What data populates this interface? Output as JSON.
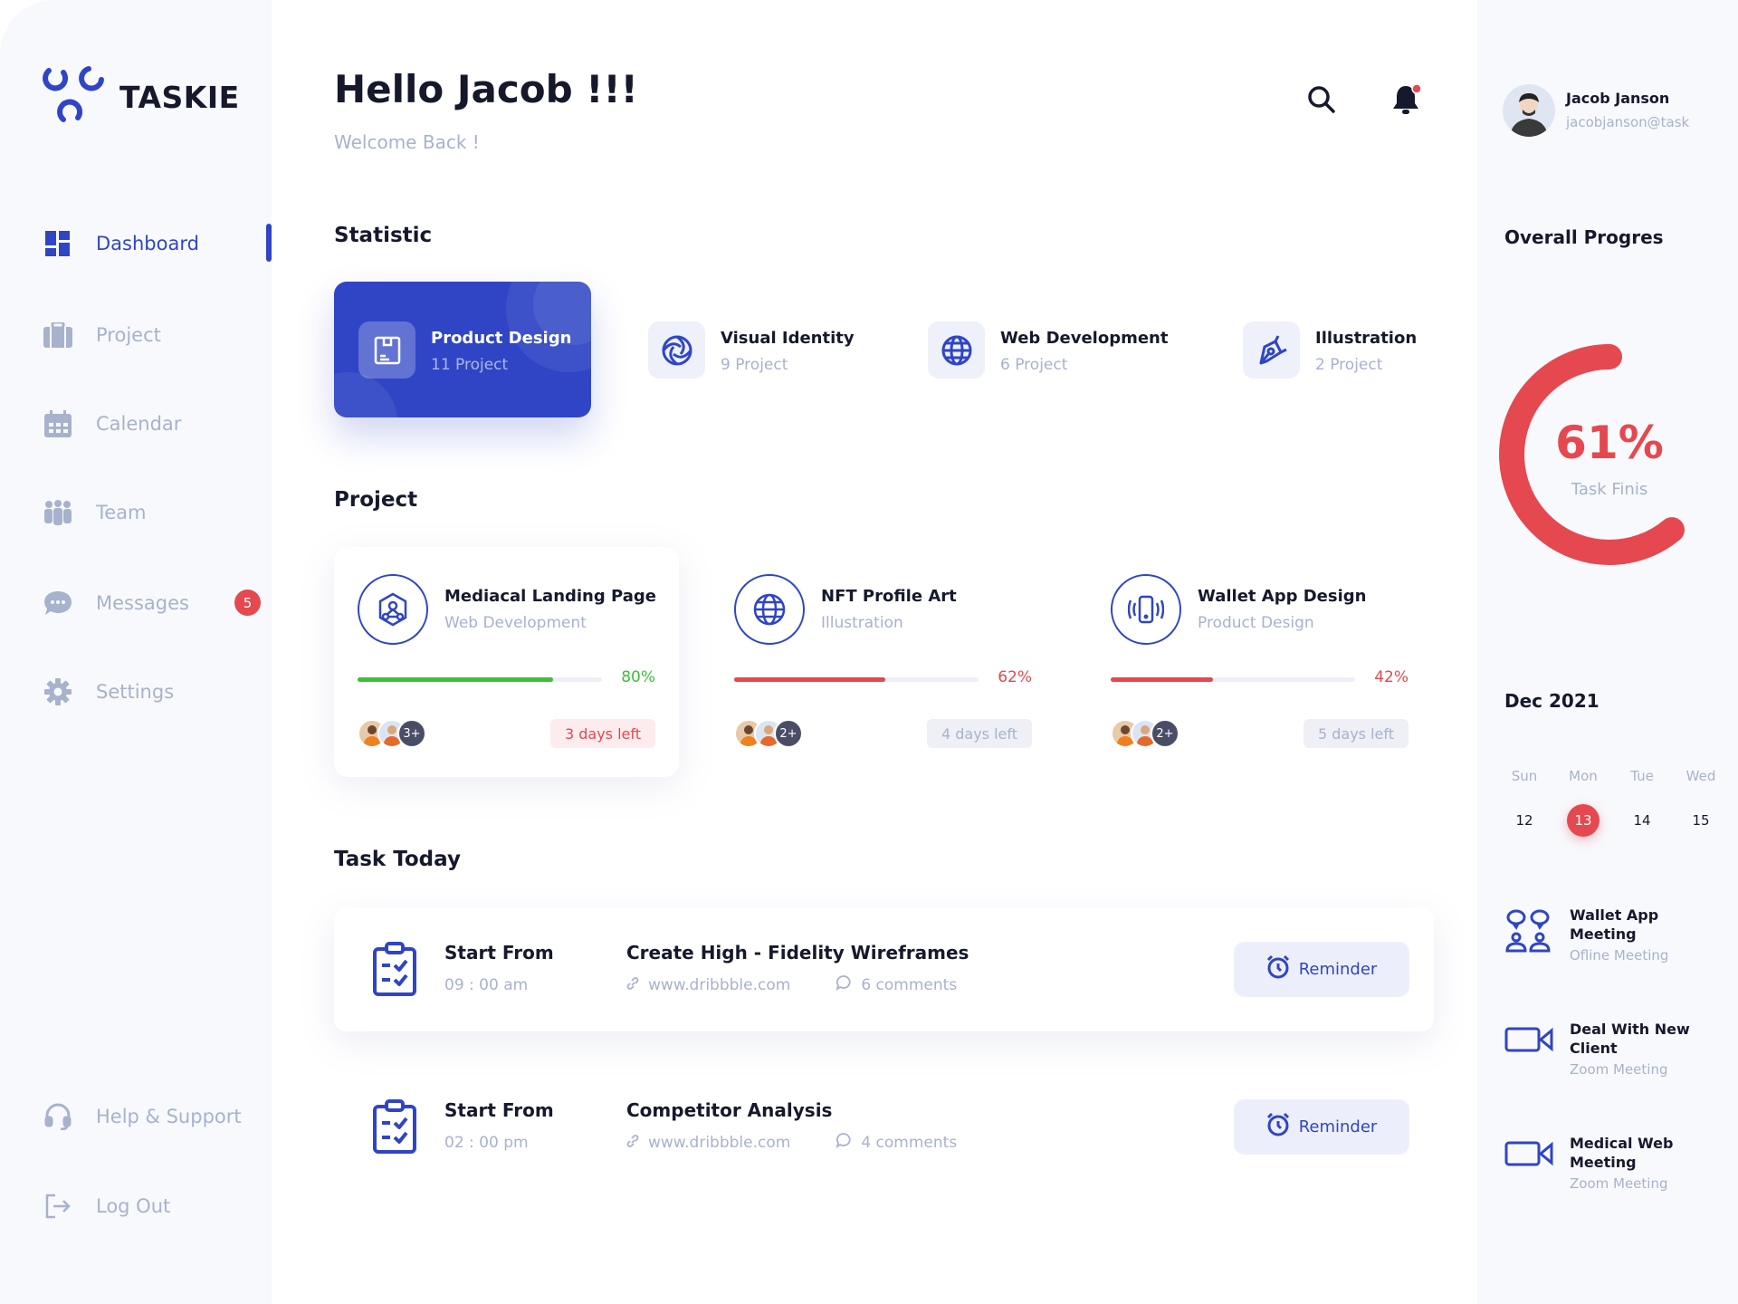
{
  "brand": {
    "name": "TASKIE",
    "color": "#2f45c5"
  },
  "sidebar": {
    "items": [
      {
        "label": "Dashboard",
        "icon": "dashboard-grid-icon",
        "active": true
      },
      {
        "label": "Project",
        "icon": "briefcase-icon"
      },
      {
        "label": "Calendar",
        "icon": "calendar-icon"
      },
      {
        "label": "Team",
        "icon": "team-icon"
      },
      {
        "label": "Messages",
        "icon": "chat-bubble-icon",
        "badge": "5"
      },
      {
        "label": "Settings",
        "icon": "gear-icon"
      }
    ],
    "bottom": [
      {
        "label": "Help & Support",
        "icon": "headset-icon"
      },
      {
        "label": "Log Out",
        "icon": "logout-icon"
      }
    ]
  },
  "header": {
    "greeting": "Hello Jacob !!!",
    "subtitle": "Welcome Back !"
  },
  "user": {
    "name": "Jacob Janson",
    "email": "jacobjanson@task"
  },
  "statistic": {
    "title": "Statistic",
    "items": [
      {
        "title": "Product Design",
        "count": "11 Project",
        "icon": "box-icon",
        "active": true
      },
      {
        "title": "Visual Identity",
        "count": "9 Project",
        "icon": "aperture-icon"
      },
      {
        "title": "Web Development",
        "count": "6 Project",
        "icon": "globe-icon"
      },
      {
        "title": "Illustration",
        "count": "2 Project",
        "icon": "pen-tool-icon"
      }
    ]
  },
  "projects": {
    "title": "Project",
    "items": [
      {
        "title": "Mediacal Landing Page",
        "category": "Web Development",
        "progress": 80,
        "progress_label": "80%",
        "color": "#3dbf3a",
        "members_more": "3+",
        "due": "3 days left",
        "due_urgent": true,
        "icon": "network-icon"
      },
      {
        "title": "NFT Profile Art",
        "category": "Illustration",
        "progress": 62,
        "progress_label": "62%",
        "color": "#e5484f",
        "members_more": "2+",
        "due": "4 days left",
        "icon": "globe-icon"
      },
      {
        "title": "Wallet App Design",
        "category": "Product Design",
        "progress": 42,
        "progress_label": "42%",
        "color": "#e5484f",
        "members_more": "2+",
        "due": "5 days left",
        "icon": "phone-vibrate-icon"
      }
    ]
  },
  "tasks": {
    "title": "Task Today",
    "items": [
      {
        "start_label": "Start From",
        "time": "09 : 00 am",
        "title": "Create High - Fidelity Wireframes",
        "link": "www.dribbble.com",
        "comments": "6 comments",
        "button": "Reminder"
      },
      {
        "start_label": "Start From",
        "time": "02 : 00 pm",
        "title": "Competitor Analysis",
        "link": "www.dribbble.com",
        "comments": "4 comments",
        "button": "Reminder"
      }
    ]
  },
  "overall": {
    "title": "Overall Progres",
    "percent": 61,
    "percent_label": "61%",
    "caption": "Task Finis",
    "color": "#e5484f"
  },
  "calendar": {
    "month": "Dec 2021",
    "days": [
      {
        "name": "Sun",
        "date": "12"
      },
      {
        "name": "Mon",
        "date": "13",
        "selected": true
      },
      {
        "name": "Tue",
        "date": "14"
      },
      {
        "name": "Wed",
        "date": "15"
      }
    ]
  },
  "events": [
    {
      "title": "Wallet App Meeting",
      "type": "Ofline Meeting",
      "icon": "meeting-people-icon"
    },
    {
      "title": "Deal With New Client",
      "type": "Zoom Meeting",
      "icon": "video-camera-icon"
    },
    {
      "title": "Medical Web Meeting",
      "type": "Zoom Meeting",
      "icon": "video-camera-icon"
    }
  ]
}
